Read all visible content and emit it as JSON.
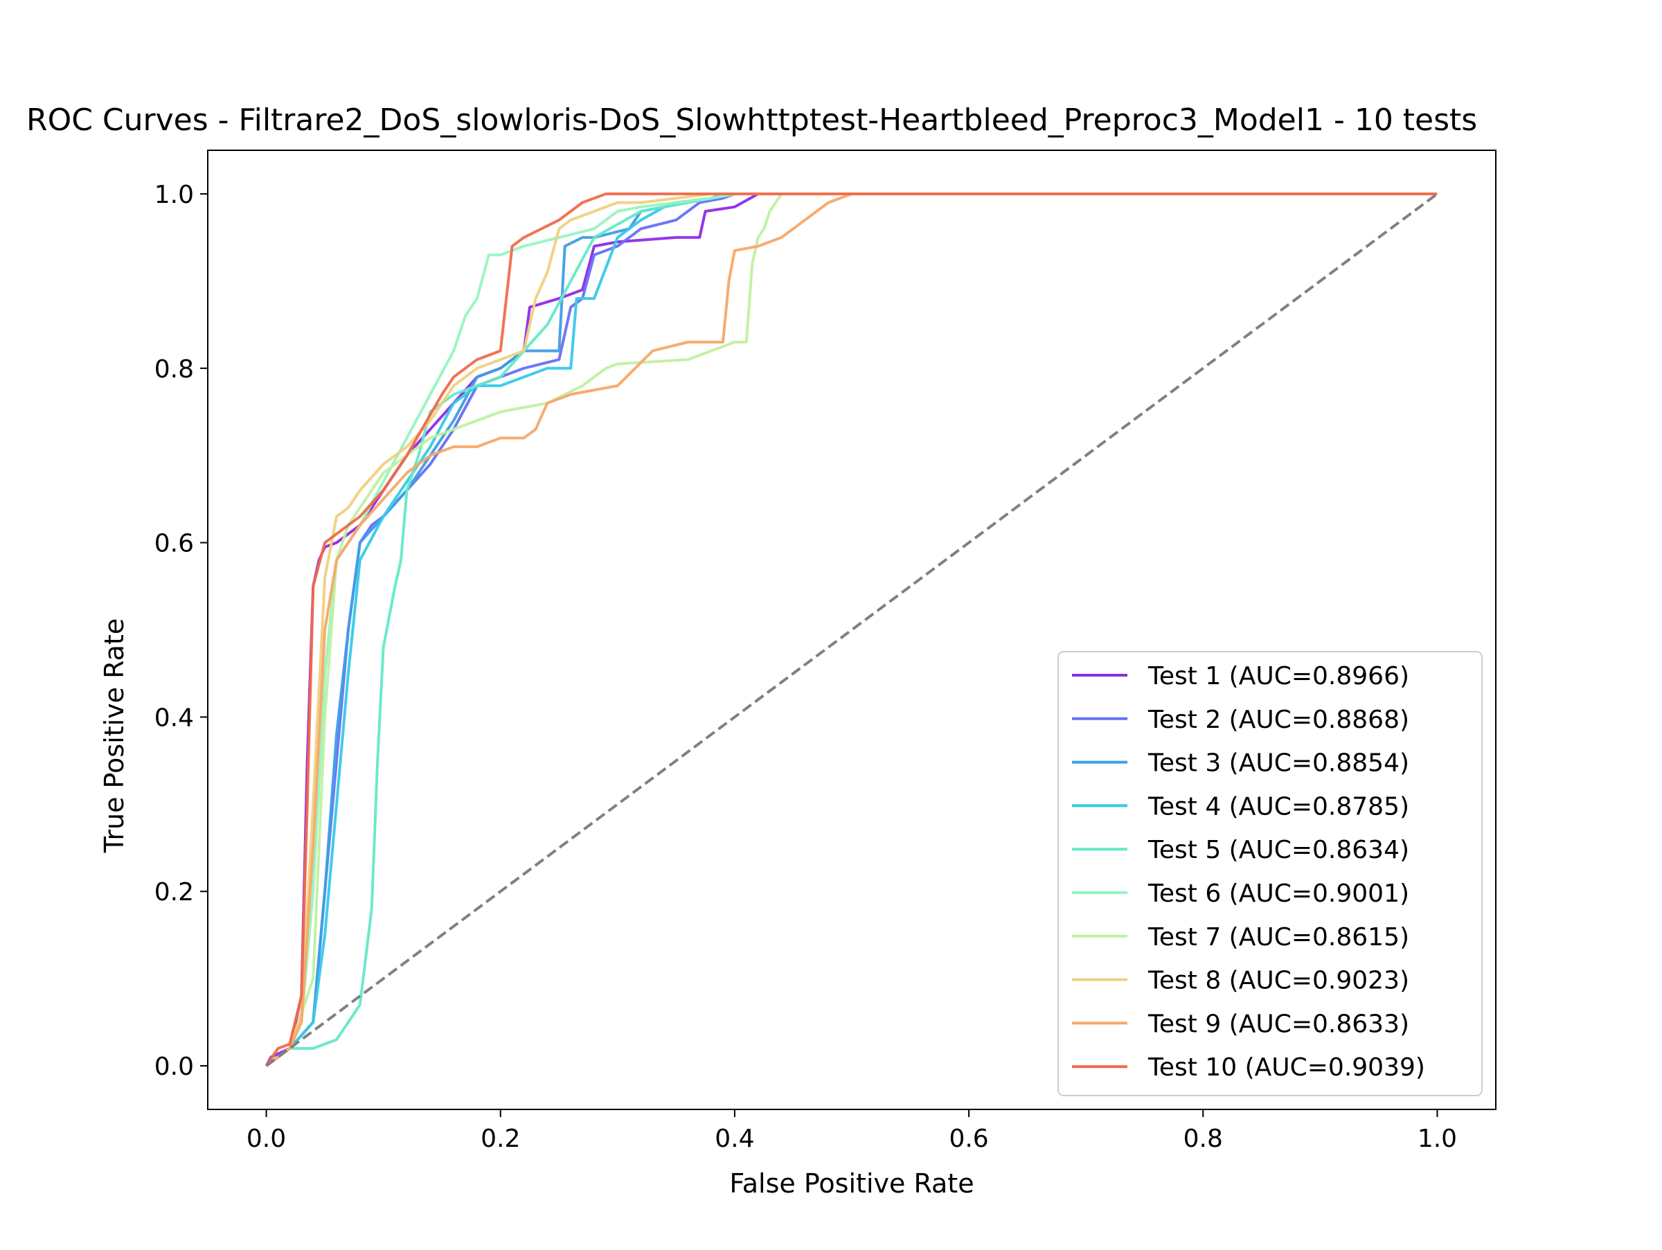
{
  "chart_data": {
    "type": "line",
    "title": "ROC Curves - Filtrare2_DoS_slowloris-DoS_Slowhttptest-Heartbleed_Preproc3_Model1 - 10 tests",
    "xlabel": "False Positive Rate",
    "ylabel": "True Positive Rate",
    "xlim": [
      -0.05,
      1.05
    ],
    "ylim": [
      -0.05,
      1.05
    ],
    "xticks": [
      "0.0",
      "0.2",
      "0.4",
      "0.6",
      "0.8",
      "1.0"
    ],
    "yticks": [
      "0.0",
      "0.2",
      "0.4",
      "0.6",
      "0.8",
      "1.0"
    ],
    "grid": false,
    "legend_position": "lower-right",
    "reference_line": {
      "x": [
        0,
        1
      ],
      "y": [
        0,
        1
      ],
      "color": "#808080",
      "style": "dashed"
    },
    "series": [
      {
        "name": "Test 1 (AUC=0.8966)",
        "color": "#8e2ae8",
        "x": [
          0,
          0.004,
          0.02,
          0.03,
          0.035,
          0.04,
          0.045,
          0.05,
          0.06,
          0.08,
          0.1,
          0.12,
          0.14,
          0.16,
          0.18,
          0.2,
          0.22,
          0.225,
          0.25,
          0.27,
          0.28,
          0.3,
          0.35,
          0.37,
          0.375,
          0.4,
          0.42,
          1.0
        ],
        "y": [
          0,
          0.01,
          0.02,
          0.08,
          0.35,
          0.55,
          0.58,
          0.595,
          0.6,
          0.62,
          0.66,
          0.7,
          0.73,
          0.76,
          0.79,
          0.8,
          0.82,
          0.87,
          0.88,
          0.89,
          0.94,
          0.945,
          0.95,
          0.95,
          0.98,
          0.985,
          1.0,
          1.0
        ]
      },
      {
        "name": "Test 2 (AUC=0.8868)",
        "color": "#6670f5",
        "x": [
          0,
          0.02,
          0.04,
          0.05,
          0.06,
          0.07,
          0.08,
          0.09,
          0.1,
          0.12,
          0.14,
          0.16,
          0.18,
          0.2,
          0.22,
          0.25,
          0.26,
          0.27,
          0.28,
          0.3,
          0.32,
          0.35,
          0.37,
          0.39,
          0.4,
          1.0
        ],
        "y": [
          0,
          0.02,
          0.05,
          0.2,
          0.35,
          0.5,
          0.6,
          0.62,
          0.63,
          0.66,
          0.69,
          0.73,
          0.78,
          0.79,
          0.8,
          0.81,
          0.87,
          0.88,
          0.93,
          0.94,
          0.96,
          0.97,
          0.99,
          0.995,
          1.0,
          1.0
        ]
      },
      {
        "name": "Test 3 (AUC=0.8854)",
        "color": "#3f9de6",
        "x": [
          0,
          0.02,
          0.04,
          0.05,
          0.06,
          0.07,
          0.08,
          0.1,
          0.12,
          0.14,
          0.16,
          0.18,
          0.2,
          0.22,
          0.25,
          0.255,
          0.27,
          0.28,
          0.31,
          0.32,
          0.34,
          0.35,
          0.38,
          0.39,
          1.0
        ],
        "y": [
          0,
          0.02,
          0.05,
          0.2,
          0.38,
          0.5,
          0.6,
          0.63,
          0.66,
          0.7,
          0.74,
          0.79,
          0.8,
          0.82,
          0.82,
          0.94,
          0.95,
          0.95,
          0.96,
          0.98,
          0.985,
          0.99,
          0.995,
          1.0,
          1.0
        ]
      },
      {
        "name": "Test 4 (AUC=0.8785)",
        "color": "#38c8e8",
        "x": [
          0,
          0.02,
          0.04,
          0.05,
          0.06,
          0.07,
          0.08,
          0.1,
          0.12,
          0.14,
          0.16,
          0.18,
          0.2,
          0.22,
          0.24,
          0.26,
          0.265,
          0.28,
          0.3,
          0.32,
          0.34,
          0.36,
          0.38,
          0.4,
          1.0
        ],
        "y": [
          0,
          0.02,
          0.05,
          0.15,
          0.3,
          0.45,
          0.58,
          0.63,
          0.67,
          0.71,
          0.76,
          0.78,
          0.78,
          0.79,
          0.8,
          0.8,
          0.88,
          0.88,
          0.95,
          0.97,
          0.985,
          0.99,
          0.995,
          1.0,
          1.0
        ]
      },
      {
        "name": "Test 5 (AUC=0.8634)",
        "color": "#62eac8",
        "x": [
          0,
          0.02,
          0.04,
          0.06,
          0.08,
          0.09,
          0.095,
          0.1,
          0.11,
          0.115,
          0.12,
          0.13,
          0.14,
          0.16,
          0.2,
          0.24,
          0.28,
          0.32,
          0.36,
          0.4,
          1.0
        ],
        "y": [
          0,
          0.02,
          0.02,
          0.03,
          0.07,
          0.18,
          0.35,
          0.48,
          0.55,
          0.58,
          0.66,
          0.7,
          0.75,
          0.77,
          0.79,
          0.85,
          0.95,
          0.98,
          0.99,
          1.0,
          1.0
        ]
      },
      {
        "name": "Test 6 (AUC=0.9001)",
        "color": "#96f5c0",
        "x": [
          0,
          0.02,
          0.03,
          0.04,
          0.05,
          0.06,
          0.07,
          0.08,
          0.1,
          0.12,
          0.14,
          0.16,
          0.17,
          0.18,
          0.19,
          0.2,
          0.22,
          0.25,
          0.28,
          0.3,
          0.32,
          0.35,
          0.38,
          0.4,
          1.0
        ],
        "y": [
          0,
          0.02,
          0.05,
          0.2,
          0.45,
          0.58,
          0.6,
          0.62,
          0.67,
          0.72,
          0.77,
          0.82,
          0.86,
          0.88,
          0.93,
          0.93,
          0.94,
          0.95,
          0.96,
          0.98,
          0.985,
          0.99,
          0.995,
          1.0,
          1.0
        ]
      },
      {
        "name": "Test 7 (AUC=0.8615)",
        "color": "#c0f0a0",
        "x": [
          0,
          0.02,
          0.04,
          0.05,
          0.06,
          0.07,
          0.08,
          0.1,
          0.12,
          0.14,
          0.16,
          0.2,
          0.24,
          0.27,
          0.29,
          0.3,
          0.36,
          0.4,
          0.41,
          0.415,
          0.42,
          0.425,
          0.43,
          0.44,
          1.0
        ],
        "y": [
          0,
          0.02,
          0.1,
          0.4,
          0.58,
          0.62,
          0.64,
          0.68,
          0.7,
          0.72,
          0.73,
          0.75,
          0.76,
          0.78,
          0.8,
          0.805,
          0.81,
          0.83,
          0.83,
          0.92,
          0.95,
          0.96,
          0.98,
          1.0,
          1.0
        ]
      },
      {
        "name": "Test 8 (AUC=0.9023)",
        "color": "#f0d080",
        "x": [
          0,
          0.02,
          0.03,
          0.04,
          0.05,
          0.06,
          0.07,
          0.08,
          0.1,
          0.12,
          0.14,
          0.16,
          0.18,
          0.2,
          0.22,
          0.23,
          0.24,
          0.25,
          0.26,
          0.28,
          0.3,
          0.32,
          0.35,
          0.38,
          0.4,
          1.0
        ],
        "y": [
          0,
          0.02,
          0.06,
          0.3,
          0.56,
          0.63,
          0.64,
          0.66,
          0.69,
          0.71,
          0.74,
          0.78,
          0.8,
          0.81,
          0.82,
          0.88,
          0.91,
          0.96,
          0.97,
          0.98,
          0.99,
          0.99,
          0.995,
          1.0,
          1.0,
          1.0
        ]
      },
      {
        "name": "Test 9 (AUC=0.8633)",
        "color": "#f7a868",
        "x": [
          0,
          0.02,
          0.03,
          0.04,
          0.05,
          0.06,
          0.08,
          0.1,
          0.12,
          0.14,
          0.16,
          0.18,
          0.2,
          0.22,
          0.23,
          0.24,
          0.26,
          0.3,
          0.33,
          0.36,
          0.39,
          0.395,
          0.4,
          0.42,
          0.44,
          0.45,
          0.47,
          0.48,
          0.5,
          1.0
        ],
        "y": [
          0,
          0.02,
          0.05,
          0.25,
          0.5,
          0.58,
          0.62,
          0.65,
          0.68,
          0.7,
          0.71,
          0.71,
          0.72,
          0.72,
          0.73,
          0.76,
          0.77,
          0.78,
          0.82,
          0.83,
          0.83,
          0.9,
          0.935,
          0.94,
          0.95,
          0.96,
          0.98,
          0.99,
          1.0,
          1.0
        ]
      },
      {
        "name": "Test 10 (AUC=0.9039)",
        "color": "#f06a4a",
        "x": [
          0,
          0.01,
          0.02,
          0.03,
          0.035,
          0.04,
          0.05,
          0.06,
          0.08,
          0.1,
          0.12,
          0.15,
          0.16,
          0.18,
          0.2,
          0.21,
          0.22,
          0.25,
          0.26,
          0.27,
          0.28,
          0.29,
          0.3,
          0.35,
          0.4,
          1.0
        ],
        "y": [
          0,
          0.02,
          0.025,
          0.08,
          0.3,
          0.55,
          0.6,
          0.61,
          0.63,
          0.66,
          0.7,
          0.77,
          0.79,
          0.81,
          0.82,
          0.94,
          0.95,
          0.97,
          0.98,
          0.99,
          0.995,
          1.0,
          1.0,
          1.0,
          1.0,
          1.0
        ]
      }
    ]
  }
}
